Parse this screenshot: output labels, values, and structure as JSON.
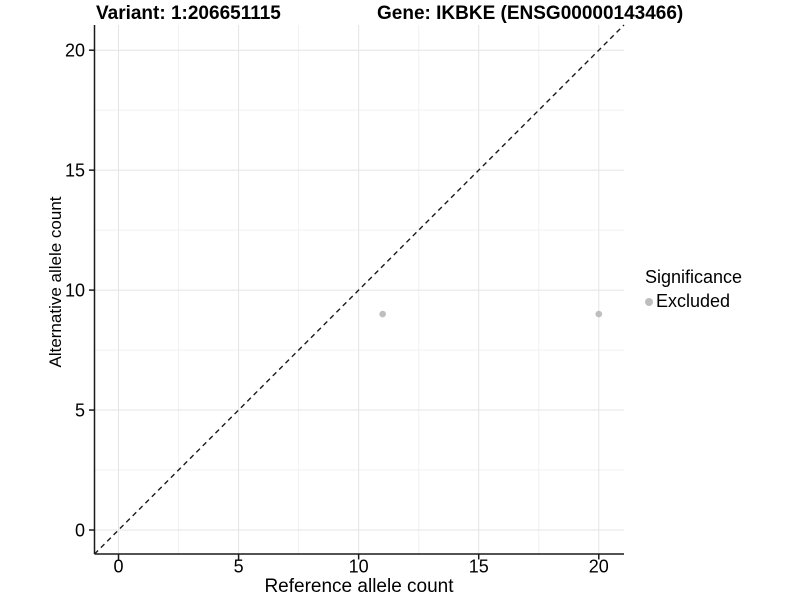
{
  "titles": {
    "variant": "Variant: 1:206651115",
    "gene": "Gene: IKBKE (ENSG00000143466)"
  },
  "axes": {
    "x_label": "Reference allele count",
    "y_label": "Alternative allele count"
  },
  "legend": {
    "title": "Significance",
    "items": [
      {
        "label": "Excluded",
        "color": "#bebebe"
      }
    ]
  },
  "colors": {
    "point": "#bebebe",
    "grid_major": "#e4e4e4",
    "grid_minor": "#f1f1f1",
    "axis_line": "#1a1a1a",
    "reference_line": "#1a1a1a",
    "text": "#000000"
  },
  "chart_data": {
    "type": "scatter",
    "title": "Variant: 1:206651115 | Gene: IKBKE (ENSG00000143466)",
    "xlabel": "Reference allele count",
    "ylabel": "Alternative allele count",
    "xlim": [
      -1.0,
      21.05
    ],
    "ylim": [
      -1.0,
      21.05
    ],
    "x_breaks": [
      0,
      5,
      10,
      15,
      20
    ],
    "y_breaks": [
      0,
      5,
      10,
      15,
      20
    ],
    "x_minor_breaks": [
      2.5,
      7.5,
      12.5,
      17.5
    ],
    "y_minor_breaks": [
      2.5,
      7.5,
      12.5,
      17.5
    ],
    "grid": true,
    "legend_position": "right",
    "legend_title": "Significance",
    "reference_line": {
      "kind": "identity y=x",
      "style": "dashed"
    },
    "series": [
      {
        "name": "Excluded",
        "color": "#bebebe",
        "points": [
          {
            "x": 11,
            "y": 9
          },
          {
            "x": 20,
            "y": 9
          }
        ]
      }
    ]
  }
}
